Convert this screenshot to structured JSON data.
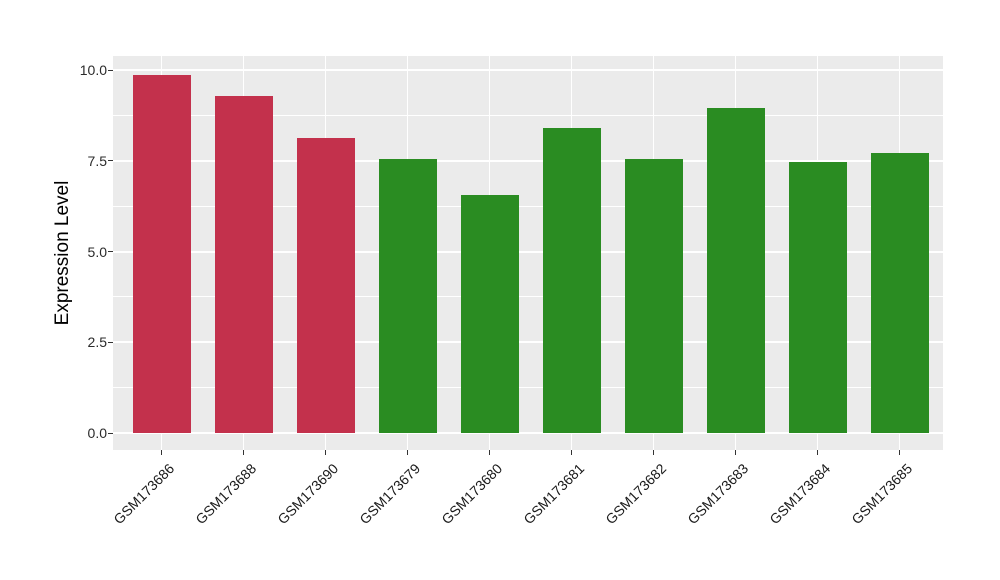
{
  "chart_data": {
    "type": "bar",
    "title": "",
    "ylabel": "Expression Level",
    "xlabel": "",
    "categories": [
      "GSM173686",
      "GSM173688",
      "GSM173690",
      "GSM173679",
      "GSM173680",
      "GSM173681",
      "GSM173682",
      "GSM173683",
      "GSM173684",
      "GSM173685"
    ],
    "values": [
      9.86,
      9.29,
      8.13,
      7.56,
      6.56,
      8.41,
      7.56,
      8.94,
      7.47,
      7.7
    ],
    "groups": [
      "red",
      "red",
      "red",
      "green",
      "green",
      "green",
      "green",
      "green",
      "green",
      "green"
    ],
    "group_colors": {
      "red": "#C3314C",
      "green": "#2A8C22"
    },
    "ylim": [
      -0.47,
      10.39
    ],
    "yticks": [
      0.0,
      2.5,
      5.0,
      7.5,
      10.0
    ],
    "ytick_labels": [
      "0.0",
      "2.5",
      "5.0",
      "7.5",
      "10.0"
    ],
    "minor_yticks": [
      1.25,
      3.75,
      6.25,
      8.75
    ],
    "grid": true,
    "legend": "none",
    "panel_background": "#EBEBEB",
    "gridline_color": "#FFFFFF",
    "xtick_angle_deg": 45
  }
}
